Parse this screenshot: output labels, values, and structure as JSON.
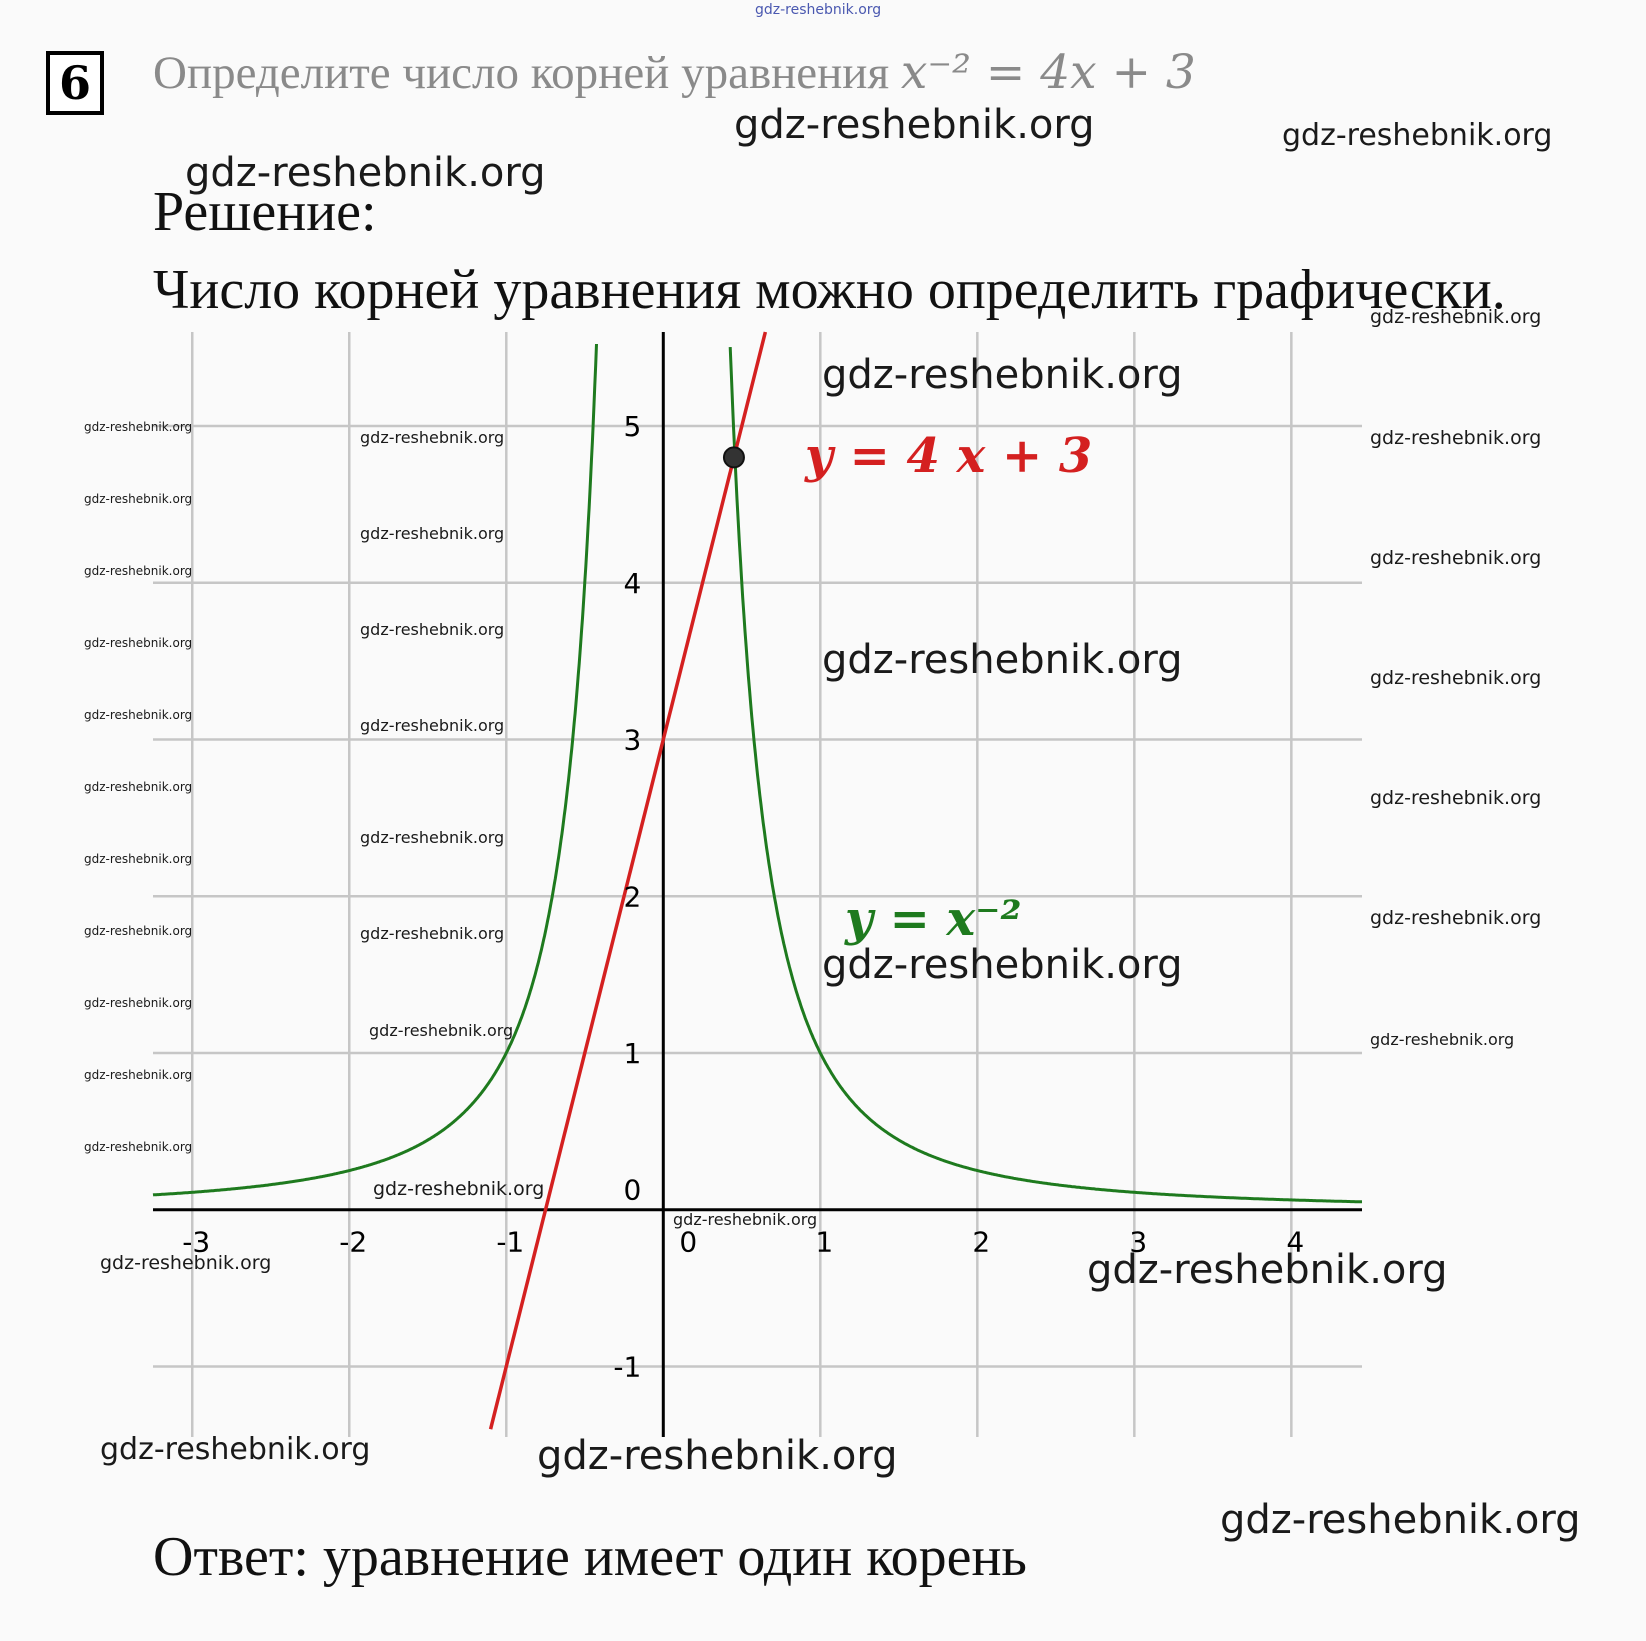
{
  "task": {
    "number": "6",
    "text": "Определите число корней уравнения ",
    "equation": "x⁻² = 4x + 3"
  },
  "solution": {
    "heading": "Решение:",
    "text": "Число корней уравнения можно определить графически.",
    "answer": "Ответ: уравнение имеет один корень"
  },
  "watermark": "gdz-reshebnik.org",
  "colors": {
    "line": "#d42020",
    "hyperbola": "#1e7a1e",
    "grid": "#c6c6c6",
    "axis": "#000000"
  },
  "chart_data": {
    "type": "line",
    "title": "",
    "xlabel": "",
    "ylabel": "",
    "xlim": [
      -3.25,
      4.45
    ],
    "ylim": [
      -1.45,
      5.6
    ],
    "grid": true,
    "x_ticks": [
      "-3",
      "-2",
      "-1",
      "0",
      "1",
      "2",
      "3",
      "4"
    ],
    "x_tick_values": [
      -3,
      -2,
      -1,
      0,
      1,
      2,
      3,
      4
    ],
    "y_ticks": [
      "-1",
      "0",
      "1",
      "2",
      "3",
      "4",
      "5"
    ],
    "y_tick_values": [
      -1,
      0,
      1,
      2,
      3,
      4,
      5
    ],
    "series": [
      {
        "name": "y = 4 x + 3",
        "formula": "4x+3",
        "color": "#d42020",
        "x_range": [
          -1.1,
          0.65
        ]
      },
      {
        "name": "y = x⁻²",
        "formula": "x^-2",
        "color": "#1e7a1e",
        "x_range": [
          -3.25,
          4.45
        ]
      }
    ],
    "intersection": {
      "x": 0.45,
      "y": 4.8
    }
  }
}
